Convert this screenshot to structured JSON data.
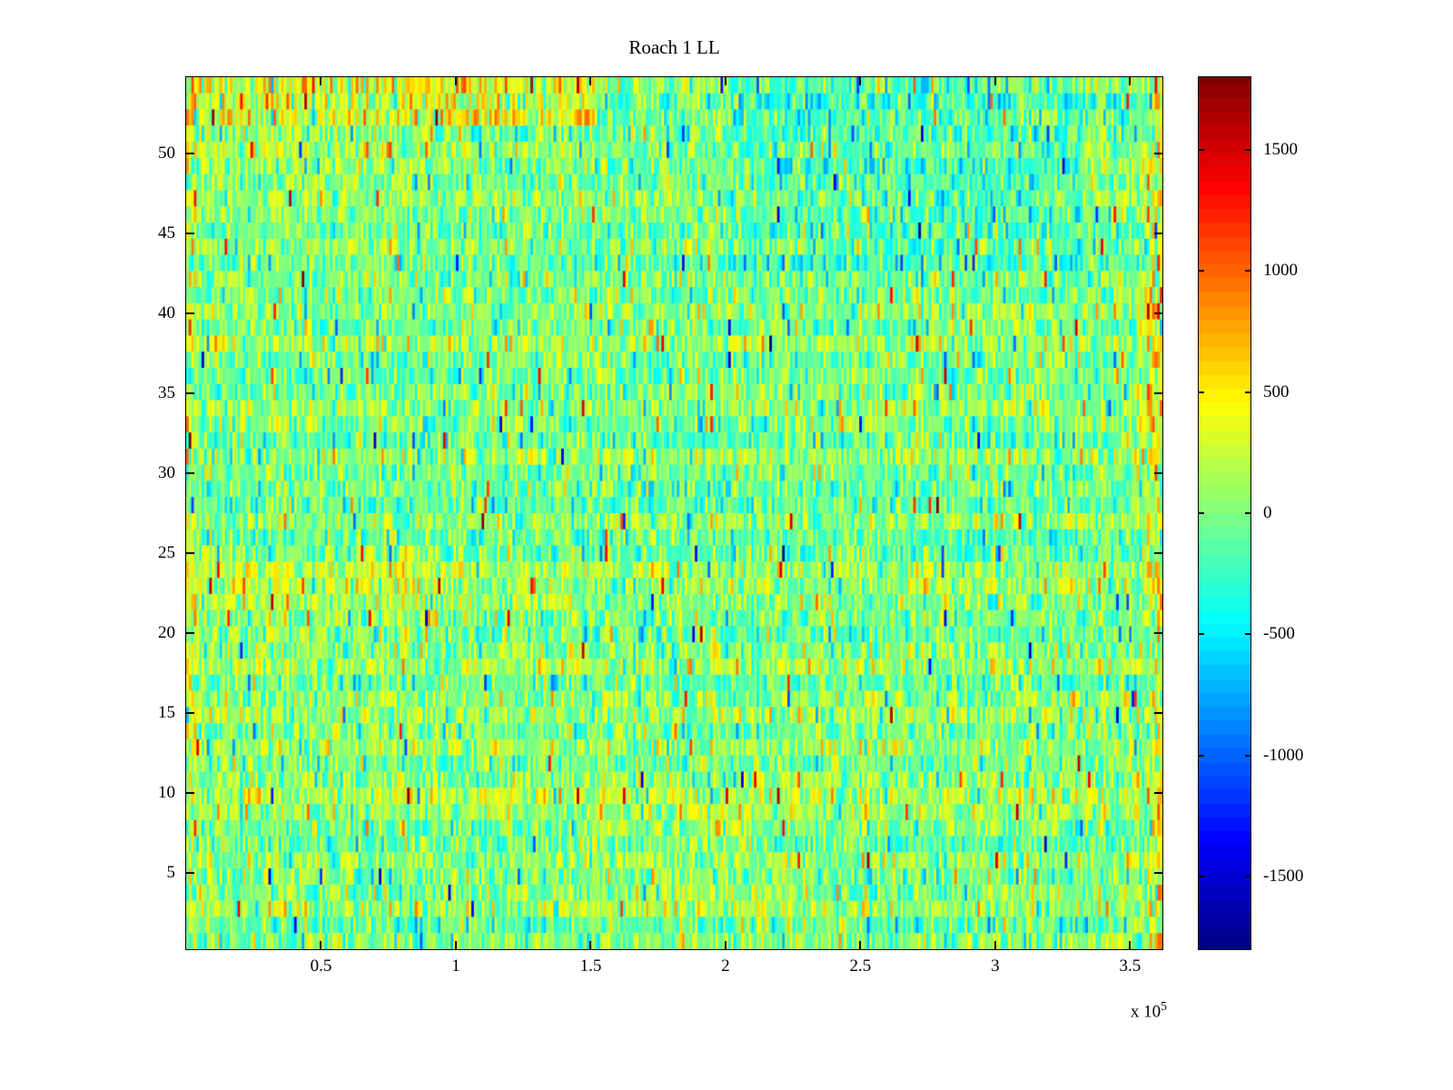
{
  "chart_data": {
    "type": "heatmap",
    "title": "Roach 1 LL",
    "description": "Dense noisy heatmap (MATLAB imagesc style, jet colormap) of ~54 channel rows vs sample index. Values mostly near 0 (green) with cyan/yellow speckle, warm orange-red patches in the top-left rows, along the left edge and along the far right edge, and a slightly cooler cyan region in the upper right.",
    "x_axis": {
      "scaled_range": [
        0,
        3.62
      ],
      "scale_exponent": 5,
      "offset_base": "x 10",
      "offset_exp": "5",
      "tick_values": [
        0.5,
        1,
        1.5,
        2,
        2.5,
        3,
        3.5
      ],
      "tick_labels": [
        "0.5",
        "1",
        "1.5",
        "2",
        "2.5",
        "3",
        "3.5"
      ]
    },
    "y_axis": {
      "range": [
        0.2,
        54.8
      ],
      "tick_values": [
        5,
        10,
        15,
        20,
        25,
        30,
        35,
        40,
        45,
        50
      ],
      "tick_labels": [
        "5",
        "10",
        "15",
        "20",
        "25",
        "30",
        "35",
        "40",
        "45",
        "50"
      ]
    },
    "colorbar": {
      "colormap": "jet",
      "segments": 64,
      "range": [
        -1800,
        1800
      ],
      "tick_values": [
        1500,
        1000,
        500,
        0,
        -500,
        -1000,
        -1500
      ],
      "tick_labels": [
        "1500",
        "1000",
        "500",
        "0",
        "-500",
        "-1000",
        "-1500"
      ]
    },
    "stats": {
      "approx_mean": 0,
      "approx_cell_std": 280,
      "value_min": -1800,
      "value_max": 1800
    },
    "render": {
      "seed": 1337,
      "rows": 54,
      "cols": 380,
      "row_bias_std": 90,
      "cell_std": 280,
      "outlier_prob": 0.015,
      "outlier_min": 500,
      "outlier_span": 1000,
      "outlier_pos_frac": 0.55,
      "features": [
        {
          "rows": [
            52,
            54
          ],
          "cols": [
            0.0,
            0.42
          ],
          "boost": 360,
          "jitter": 260
        },
        {
          "rows": [
            49,
            51
          ],
          "cols": [
            0.0,
            0.25
          ],
          "boost": 150,
          "jitter": 150
        },
        {
          "rows": [
            1,
            54
          ],
          "cols": [
            0.985,
            1.0
          ],
          "boost": 260,
          "jitter": 280
        },
        {
          "rows": [
            1,
            54
          ],
          "cols": [
            0.0,
            0.01
          ],
          "boost": 130,
          "jitter": 150
        },
        {
          "rows": [
            43,
            54
          ],
          "cols": [
            0.55,
            0.92
          ],
          "boost": -170,
          "jitter": 100
        },
        {
          "rows": [
            20,
            25
          ],
          "cols": [
            0.0,
            0.28
          ],
          "boost": 110,
          "jitter": 120
        },
        {
          "rows": [
            30,
            41
          ],
          "cols": [
            0.975,
            1.0
          ],
          "boost": 200,
          "jitter": 200
        },
        {
          "rows": [
            3,
            9
          ],
          "cols": [
            0.38,
            0.62
          ],
          "boost": 90,
          "jitter": 80
        }
      ]
    }
  }
}
